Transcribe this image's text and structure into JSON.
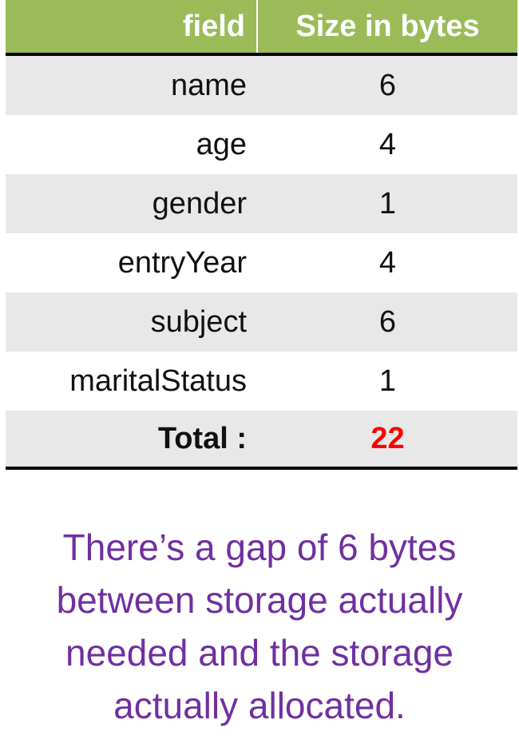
{
  "table": {
    "header": {
      "field": "field",
      "size": "Size in bytes"
    },
    "rows": [
      {
        "field": "name",
        "size": "6"
      },
      {
        "field": "age",
        "size": "4"
      },
      {
        "field": "gender",
        "size": "1"
      },
      {
        "field": "entryYear",
        "size": "4"
      },
      {
        "field": "subject",
        "size": "6"
      },
      {
        "field": "maritalStatus",
        "size": "1"
      }
    ],
    "total": {
      "label": "Total :",
      "value": "22",
      "value_color": "#ff0000"
    }
  },
  "note": {
    "line1": "There’s a gap of 6 bytes",
    "line2": "between storage actually",
    "line3": "needed and the storage",
    "line4": "actually allocated."
  },
  "colors": {
    "header_bg": "#9bbb59",
    "shaded_row_bg": "#e8e8e8",
    "note_text": "#7030a0"
  }
}
